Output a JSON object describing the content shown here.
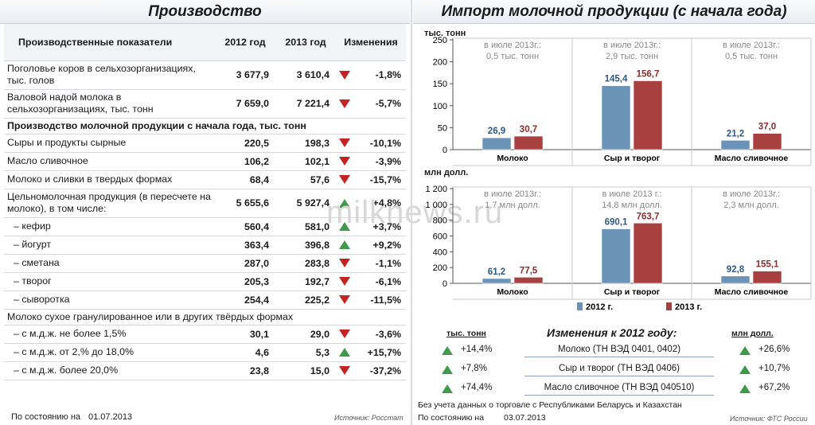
{
  "left": {
    "title": "Производство",
    "headers": [
      "Производственные показатели",
      "2012 год",
      "2013 год",
      "Изменения"
    ],
    "rows": [
      {
        "label": "Поголовье коров в сельхозорганизациях, тыс. голов",
        "v2012": "3 677,9",
        "v2013": "3 610,4",
        "dir": "down",
        "change": "-1,8%",
        "lines": 2
      },
      {
        "label": "Валовой надой молока в сельхозорганизациях, тыс. тонн",
        "v2012": "7 659,0",
        "v2013": "7 221,4",
        "dir": "down",
        "change": "-5,7%",
        "lines": 2
      },
      {
        "section": true,
        "label": "Производство молочной продукции с начала года, тыс. тонн"
      },
      {
        "label": "Сыры и продукты сырные",
        "v2012": "220,5",
        "v2013": "198,3",
        "dir": "down",
        "change": "-10,1%"
      },
      {
        "label": "Масло сливочное",
        "v2012": "106,2",
        "v2013": "102,1",
        "dir": "down",
        "change": "-3,9%"
      },
      {
        "label": "Молоко и сливки в твердых формах",
        "v2012": "68,4",
        "v2013": "57,6",
        "dir": "down",
        "change": "-15,7%"
      },
      {
        "label": "Цельномолочная продукция (в пересчете на молоко), в том числе:",
        "v2012": "5 655,6",
        "v2013": "5 927,4",
        "dir": "up",
        "change": "+4,8%",
        "lines": 2
      },
      {
        "label": "– кефир",
        "v2012": "560,4",
        "v2013": "581,0",
        "dir": "up",
        "change": "+3,7%",
        "indent": true
      },
      {
        "label": "– йогурт",
        "v2012": "363,4",
        "v2013": "396,8",
        "dir": "up",
        "change": "+9,2%",
        "indent": true
      },
      {
        "label": "– сметана",
        "v2012": "287,0",
        "v2013": "283,8",
        "dir": "down",
        "change": "-1,1%",
        "indent": true
      },
      {
        "label": "– творог",
        "v2012": "205,3",
        "v2013": "192,7",
        "dir": "down",
        "change": "-6,1%",
        "indent": true
      },
      {
        "label": "– сыворотка",
        "v2012": "254,4",
        "v2013": "225,2",
        "dir": "down",
        "change": "-11,5%",
        "indent": true
      },
      {
        "section": true,
        "plain": true,
        "label": "Молоко сухое гранулированное или в других твёрдых формах"
      },
      {
        "label": "– с м.д.ж. не более 1,5%",
        "v2012": "30,1",
        "v2013": "29,0",
        "dir": "down",
        "change": "-3,6%",
        "indent": true
      },
      {
        "label": "– с м.д.ж. от 2,% до 18,0%",
        "v2012": "4,6",
        "v2013": "5,3",
        "dir": "up",
        "change": "+15,7%",
        "indent": true
      },
      {
        "label": "– с м.д.ж. более 20,0%",
        "v2012": "23,8",
        "v2013": "15,0",
        "dir": "down",
        "change": "-37,2%",
        "indent": true
      }
    ],
    "footer_label": "По состоянию на",
    "footer_date": "01.07.2013",
    "source": "Источник: Росстат"
  },
  "right": {
    "title": "Импорт молочной продукции (с начала года)",
    "footnote": "Без учета данных о торговле с Республиками Беларусь и Казахстан",
    "footer_label": "По состоянию на",
    "footer_date": "03.07.2013",
    "source": "Источник: ФТС России",
    "changes_title": "Изменения к 2012 году:",
    "changes_left_unit": "тыс. тонн",
    "changes_right_unit": "млн долл.",
    "changes": [
      {
        "left": "+14,4%",
        "name": "Молоко (ТН ВЭД 0401, 0402)",
        "right": "+26,6%"
      },
      {
        "left": "+7,8%",
        "name": "Сыр и творог (ТН ВЭД 0406)",
        "right": "+10,7%"
      },
      {
        "left": "+74,4%",
        "name": "Масло сливочное (ТН ВЭД 040510)",
        "right": "+67,2%"
      }
    ]
  },
  "watermark": "milknews.ru",
  "colors": {
    "s2012": "#6b93b8",
    "s2013": "#a8403f",
    "up": "#3f9a4b",
    "down": "#c52222"
  },
  "chart_data": [
    {
      "type": "bar",
      "ylabel": "тыс. тонн",
      "ylim": [
        0,
        250
      ],
      "yticks": [
        0,
        50,
        100,
        150,
        200,
        250
      ],
      "categories": [
        "Молоко",
        "Сыр и творог",
        "Масло сливочное"
      ],
      "series": [
        {
          "name": "2012 г.",
          "values": [
            26.9,
            145.4,
            21.2
          ],
          "labels": [
            "26,9",
            "145,4",
            "21,2"
          ]
        },
        {
          "name": "2013 г.",
          "values": [
            30.7,
            156.7,
            37.0
          ],
          "labels": [
            "30,7",
            "156,7",
            "37,0"
          ]
        }
      ],
      "annotations": [
        [
          "в июле 2013г.:",
          "0,5 тыс. тонн"
        ],
        [
          "в июле 2013г.:",
          "2,9 тыс. тонн"
        ],
        [
          "в июле 2013г.:",
          "0,5 тыс. тонн"
        ]
      ],
      "grid": false
    },
    {
      "type": "bar",
      "ylabel": "млн долл.",
      "ylim": [
        0,
        1200
      ],
      "yticks": [
        0,
        200,
        400,
        600,
        800,
        1000,
        1200
      ],
      "ytick_labels": [
        "0",
        "200",
        "400",
        "600",
        "800",
        "1 000",
        "1 200"
      ],
      "categories": [
        "Молоко",
        "Сыр и творог",
        "Масло сливочное"
      ],
      "series": [
        {
          "name": "2012 г.",
          "values": [
            61.2,
            690.1,
            92.8
          ],
          "labels": [
            "61,2",
            "690,1",
            "92,8"
          ]
        },
        {
          "name": "2013 г.",
          "values": [
            77.5,
            763.7,
            155.1
          ],
          "labels": [
            "77,5",
            "763,7",
            "155,1"
          ]
        }
      ],
      "annotations": [
        [
          "в июле 2013г.:",
          "1,7 млн долл."
        ],
        [
          "в июле 2013 г.:",
          "14,8 млн долл."
        ],
        [
          "в июле 2013г.:",
          "2,3 млн долл."
        ]
      ],
      "legend": "bottom",
      "grid": false
    }
  ]
}
